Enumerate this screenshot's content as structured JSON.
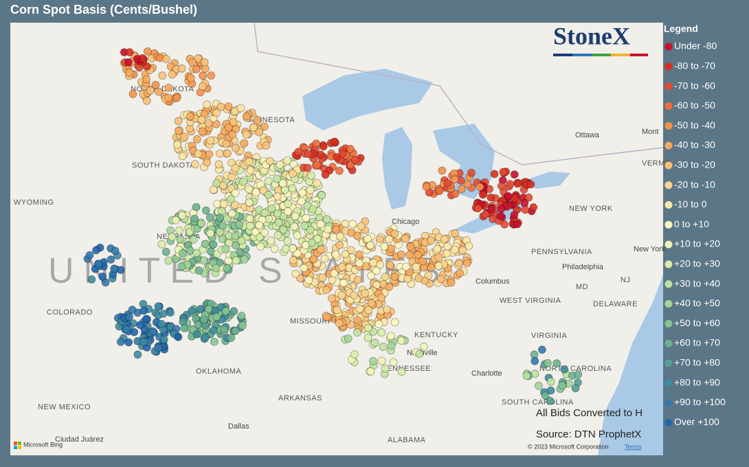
{
  "title": "Corn Spot Basis (Cents/Bushel)",
  "logo": "StoneX",
  "legend": {
    "title": "Legend",
    "items": [
      {
        "label": "Under -80",
        "color": "#c8102e"
      },
      {
        "label": "-80 to -70",
        "color": "#d7301f"
      },
      {
        "label": "-70 to -60",
        "color": "#e34a33"
      },
      {
        "label": "-60 to -50",
        "color": "#ef6e3c"
      },
      {
        "label": "-50 to -40",
        "color": "#f4924a"
      },
      {
        "label": "-40 to -30",
        "color": "#f7a95c"
      },
      {
        "label": "-30 to -20",
        "color": "#f9c075"
      },
      {
        "label": "-20 to -10",
        "color": "#fbd58e"
      },
      {
        "label": "-10 to 0",
        "color": "#fde7a6"
      },
      {
        "label": "0 to +10",
        "color": "#fdf6bf"
      },
      {
        "label": "+10 to +20",
        "color": "#f0f4b8"
      },
      {
        "label": "+20 to +30",
        "color": "#d9edaa"
      },
      {
        "label": "+30 to +40",
        "color": "#bfe3a0"
      },
      {
        "label": "+40 to +50",
        "color": "#a4d69a"
      },
      {
        "label": "+50 to +60",
        "color": "#86c493"
      },
      {
        "label": "+60 to +70",
        "color": "#6ab28f"
      },
      {
        "label": "+70 to +80",
        "color": "#549f94"
      },
      {
        "label": "+80 to +90",
        "color": "#3f8ca0"
      },
      {
        "label": "+90 to +100",
        "color": "#3479ad"
      },
      {
        "label": "Over +100",
        "color": "#2166ac"
      }
    ]
  },
  "notes": [
    "All Bids Converted to H",
    "Source: DTN ProphetX"
  ],
  "copyright": "© 2023 Microsoft Corporation",
  "terms": "Terms",
  "bing": "Microsoft Bing",
  "map_labels": [
    "NORTH DAKOTA",
    "MINNESOTA",
    "SOUTH DAKOTA",
    "WYOMING",
    "NEBRASKA",
    "UNITED STATES",
    "COLORADO",
    "MISSOURI",
    "KENTUCKY",
    "OKLAHOMA",
    "ARKANSAS",
    "TENNESSEE",
    "NEW MEXICO",
    "ALABAMA",
    "WEST VIRGINIA",
    "VIRGINIA",
    "PENNSYLVANIA",
    "NEW YORK",
    "Ottawa",
    "Chicago",
    "Columbus",
    "Nashville",
    "Charlotte",
    "Dallas",
    "Ciudad Juárez",
    "Philadelphia",
    "DELAWARE",
    "NORTH CAROLINA",
    "SOUTH CAROLINA",
    "Mont",
    "VERMO",
    "MD",
    "NJ",
    "New York"
  ]
}
